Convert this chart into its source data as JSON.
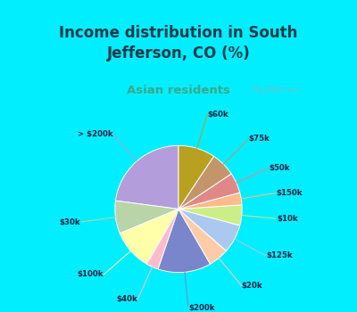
{
  "title": "Income distribution in South\nJefferson, CO (%)",
  "subtitle": "Asian residents",
  "title_color": "#1a3a4a",
  "subtitle_color": "#3aaa88",
  "background_cyan": "#00eeff",
  "background_chart": "#d8f0e0",
  "labels": [
    "> $200k",
    "$30k",
    "$100k",
    "$40k",
    "$200k",
    "$20k",
    "$125k",
    "$10k",
    "$150k",
    "$50k",
    "$75k",
    "$60k"
  ],
  "values": [
    22,
    8,
    10,
    3,
    13,
    5,
    7,
    5,
    3,
    5,
    6,
    9
  ],
  "colors": [
    "#b39ddb",
    "#b8d4a8",
    "#ffffaa",
    "#ffbbcc",
    "#7986cb",
    "#ffccaa",
    "#aac8f0",
    "#ccee88",
    "#ffbb88",
    "#e08888",
    "#c4956a",
    "#b8a020"
  ],
  "startangle": 90,
  "figsize": [
    4.0,
    3.5
  ],
  "dpi": 100
}
